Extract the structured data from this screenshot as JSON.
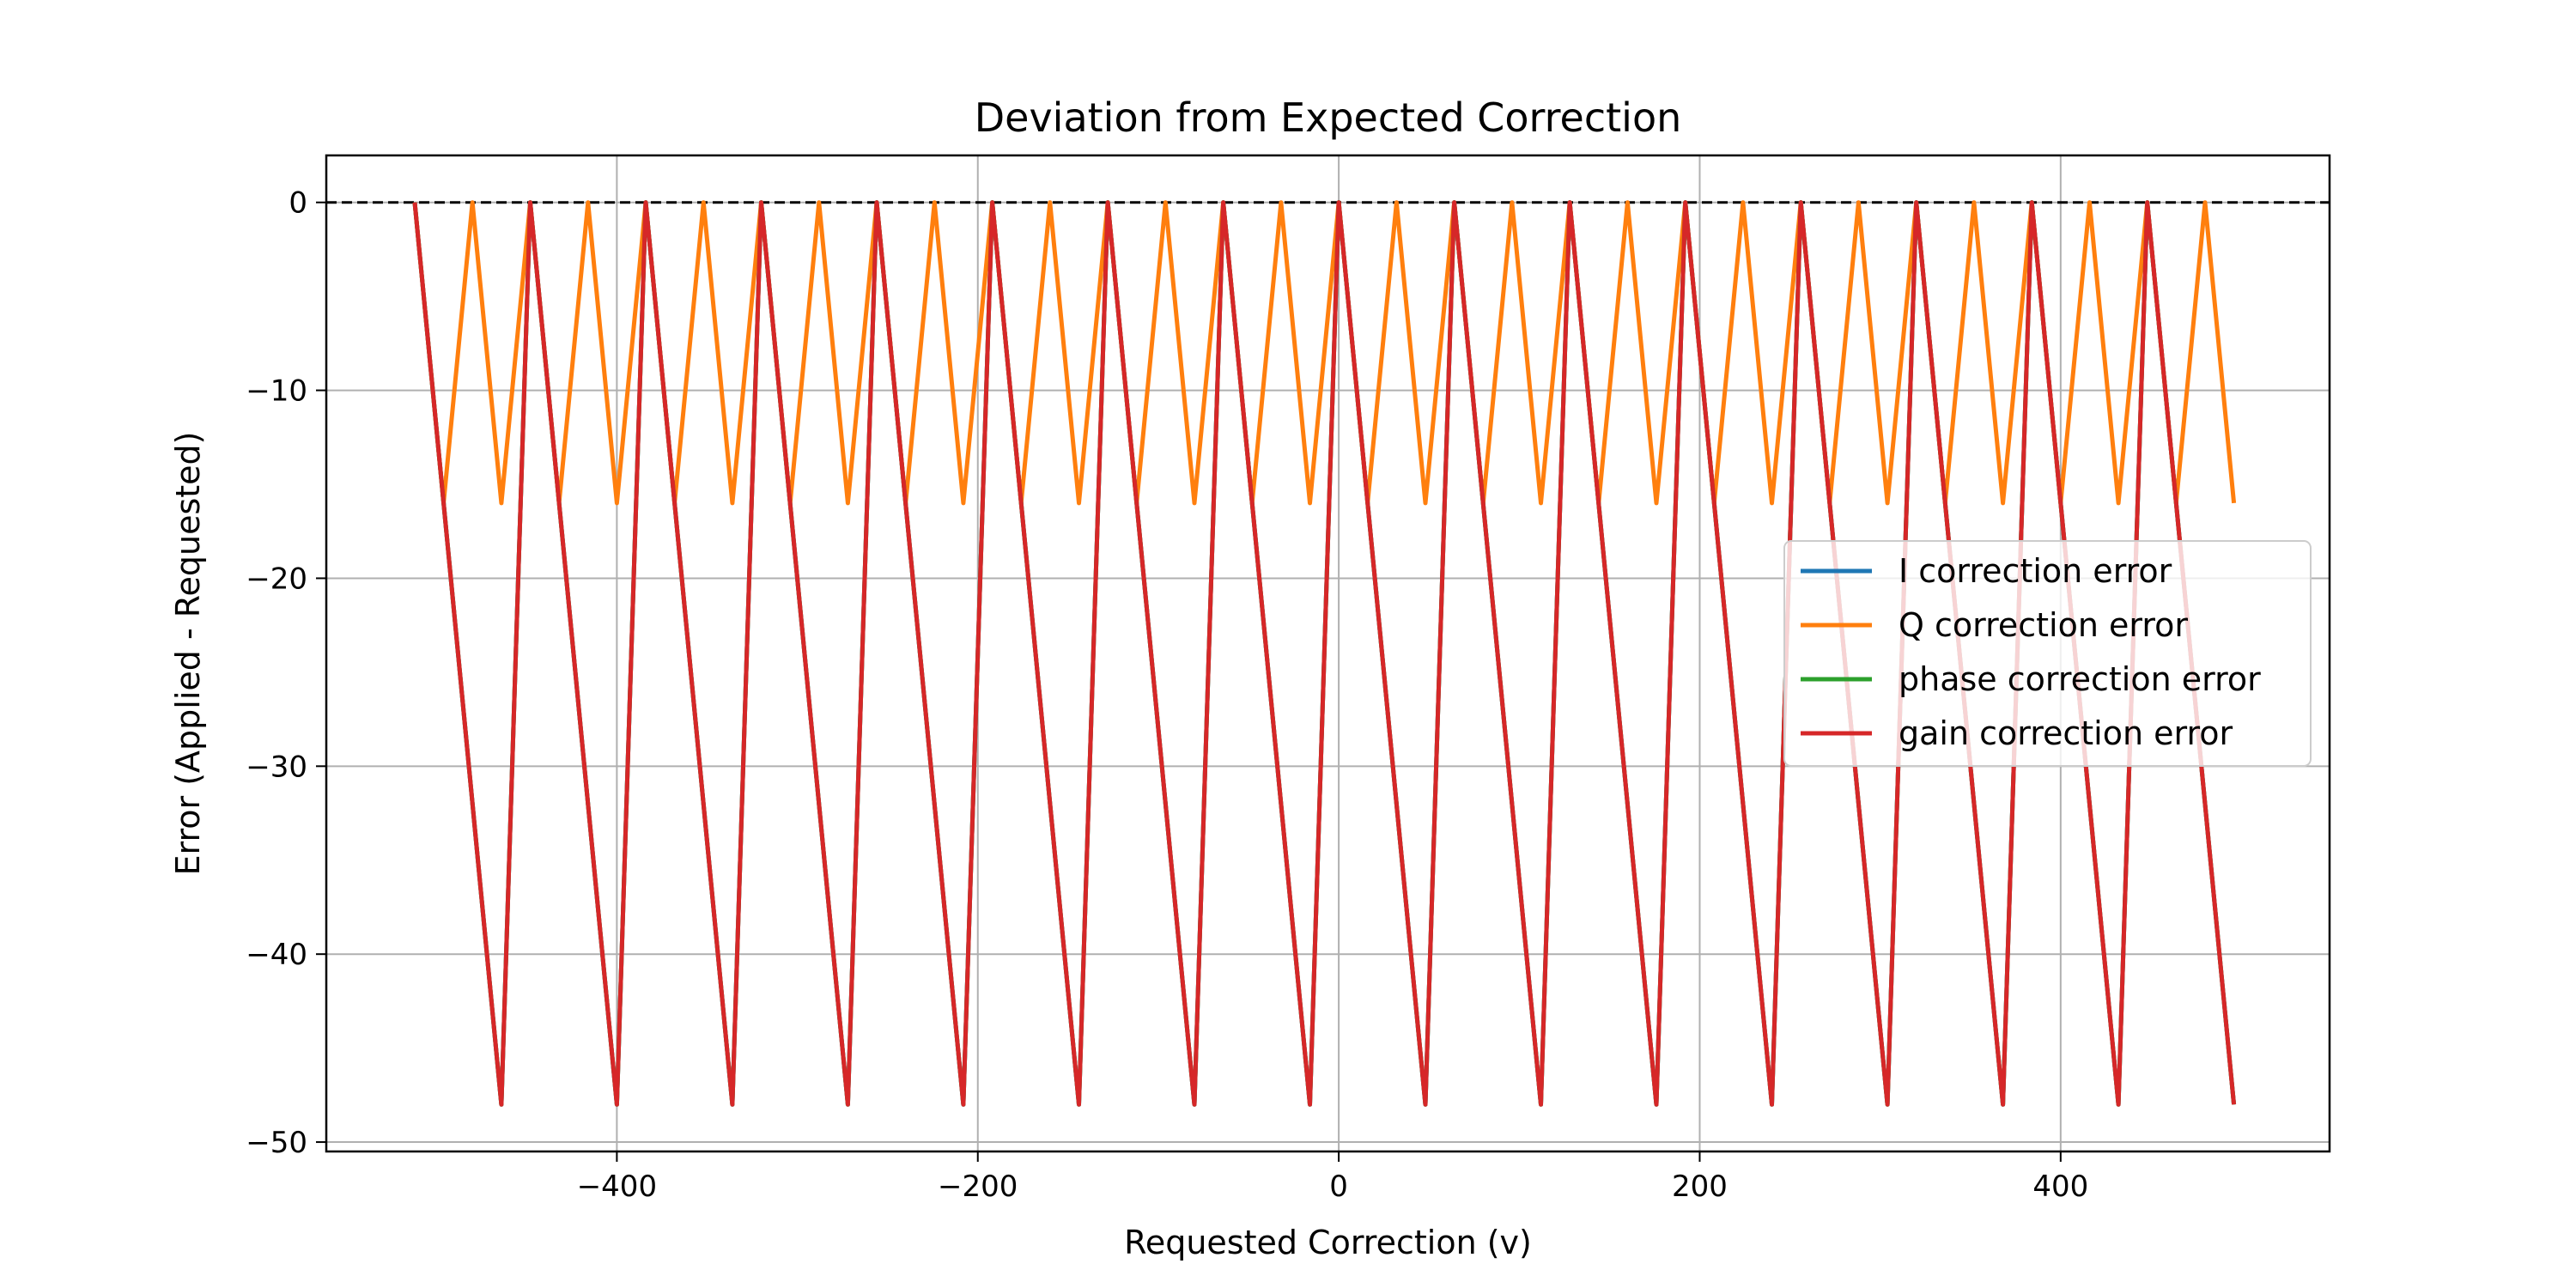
{
  "chart_data": {
    "type": "line",
    "title": "Deviation from Expected Correction",
    "xlabel": "Requested Correction (v)",
    "ylabel": "Error (Applied - Requested)",
    "xlim": [
      -561,
      549
    ],
    "ylim": [
      -50.5,
      2.5
    ],
    "xticks": [
      -400,
      -200,
      0,
      200,
      400
    ],
    "yticks": [
      0,
      -10,
      -20,
      -30,
      -40,
      -50
    ],
    "xtick_labels": [
      "−400",
      "−200",
      "0",
      "200",
      "400"
    ],
    "ytick_labels": [
      "0",
      "−10",
      "−20",
      "−30",
      "−40",
      "−50"
    ],
    "grid": true,
    "reference_line": {
      "y": 0,
      "style": "dashed",
      "color": "#000000"
    },
    "legend_position": "center-right",
    "series": [
      {
        "name": "I correction error",
        "color": "#1f77b4",
        "description": "sawtooth pattern overlapping gain correction error",
        "x": [
          -512,
          -464,
          -448,
          -400,
          -384,
          -336,
          -320,
          -272,
          -256,
          -208,
          -192,
          -144,
          -128,
          -80,
          -64,
          -16,
          0,
          48,
          64,
          112,
          128,
          176,
          192,
          240,
          256,
          304,
          320,
          368,
          384,
          432,
          448,
          496
        ],
        "y": [
          0,
          -48,
          0,
          -48,
          0,
          -48,
          0,
          -48,
          0,
          -48,
          0,
          -48,
          0,
          -48,
          0,
          -48,
          0,
          -48,
          0,
          -48,
          0,
          -48,
          0,
          -48,
          0,
          -48,
          0,
          -48,
          0,
          -48,
          0,
          -48
        ]
      },
      {
        "name": "Q correction error",
        "color": "#ff7f0e",
        "x": [
          -512,
          -496,
          -480,
          -464,
          -448,
          -432,
          -416,
          -400,
          -384,
          -368,
          -352,
          -336,
          -320,
          -304,
          -288,
          -272,
          -256,
          -240,
          -224,
          -208,
          -192,
          -176,
          -160,
          -144,
          -128,
          -112,
          -96,
          -80,
          -64,
          -48,
          -32,
          -16,
          0,
          16,
          32,
          48,
          64,
          80,
          96,
          112,
          128,
          144,
          160,
          176,
          192,
          208,
          224,
          240,
          256,
          272,
          288,
          304,
          320,
          336,
          352,
          368,
          384,
          400,
          416,
          432,
          448,
          464,
          480,
          496
        ],
        "y": [
          0,
          -16,
          0,
          -16,
          0,
          -16,
          0,
          -16,
          0,
          -16,
          0,
          -16,
          0,
          -16,
          0,
          -16,
          0,
          -16,
          0,
          -16,
          0,
          -16,
          0,
          -16,
          0,
          -16,
          0,
          -16,
          0,
          -16,
          0,
          -16,
          0,
          -16,
          0,
          -16,
          0,
          -16,
          0,
          -16,
          0,
          -16,
          0,
          -16,
          0,
          -16,
          0,
          -16,
          0,
          -16,
          0,
          -16,
          0,
          -16,
          0,
          -16,
          0,
          -16,
          0,
          -16,
          0,
          -16,
          0,
          -16
        ]
      },
      {
        "name": "phase correction error",
        "color": "#2ca02c",
        "description": "sawtooth pattern overlapping gain correction error",
        "x": [
          -512,
          -464,
          -448,
          -400,
          -384,
          -336,
          -320,
          -272,
          -256,
          -208,
          -192,
          -144,
          -128,
          -80,
          -64,
          -16,
          0,
          48,
          64,
          112,
          128,
          176,
          192,
          240,
          256,
          304,
          320,
          368,
          384,
          432,
          448,
          496
        ],
        "y": [
          0,
          -48,
          0,
          -48,
          0,
          -48,
          0,
          -48,
          0,
          -48,
          0,
          -48,
          0,
          -48,
          0,
          -48,
          0,
          -48,
          0,
          -48,
          0,
          -48,
          0,
          -48,
          0,
          -48,
          0,
          -48,
          0,
          -48,
          0,
          -48
        ]
      },
      {
        "name": "gain correction error",
        "color": "#d62728",
        "x": [
          -512,
          -464,
          -448,
          -400,
          -384,
          -336,
          -320,
          -272,
          -256,
          -208,
          -192,
          -144,
          -128,
          -80,
          -64,
          -16,
          0,
          48,
          64,
          112,
          128,
          176,
          192,
          240,
          256,
          304,
          320,
          368,
          384,
          432,
          448,
          496
        ],
        "y": [
          0,
          -48,
          0,
          -48,
          0,
          -48,
          0,
          -48,
          0,
          -48,
          0,
          -48,
          0,
          -48,
          0,
          -48,
          0,
          -48,
          0,
          -48,
          0,
          -48,
          0,
          -48,
          0,
          -48,
          0,
          -48,
          0,
          -48,
          0,
          -48
        ]
      }
    ]
  }
}
